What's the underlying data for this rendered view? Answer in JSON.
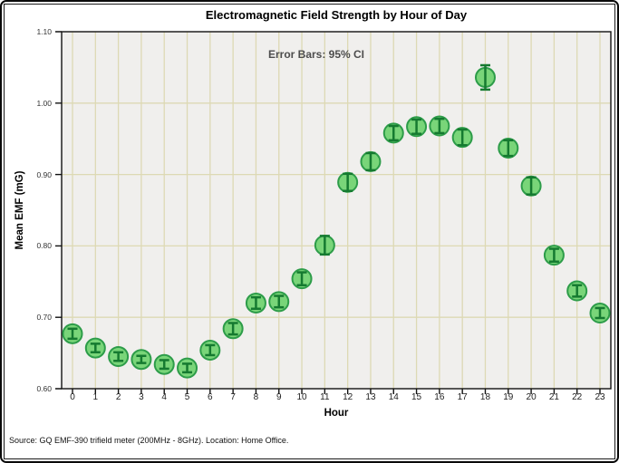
{
  "source_note": "Source: GQ EMF-390 trifield meter (200MHz - 8GHz). Location: Home Office.",
  "chart_data": {
    "type": "scatter",
    "title": "Electromagnetic Field Strength by Hour of Day",
    "xlabel": "Hour",
    "ylabel": "Mean EMF (mG)",
    "annotation": "Error Bars: 95% CI",
    "x": [
      0,
      1,
      2,
      3,
      4,
      5,
      6,
      7,
      8,
      9,
      10,
      11,
      12,
      13,
      14,
      15,
      16,
      17,
      18,
      19,
      20,
      21,
      22,
      23
    ],
    "y": [
      0.677,
      0.657,
      0.645,
      0.641,
      0.634,
      0.629,
      0.654,
      0.684,
      0.72,
      0.722,
      0.754,
      0.801,
      0.889,
      0.918,
      0.958,
      0.967,
      0.968,
      0.952,
      1.036,
      0.937,
      0.884,
      0.787,
      0.737,
      0.706
    ],
    "ci95": [
      0.007,
      0.006,
      0.006,
      0.005,
      0.006,
      0.006,
      0.007,
      0.008,
      0.008,
      0.008,
      0.009,
      0.013,
      0.012,
      0.012,
      0.01,
      0.01,
      0.01,
      0.011,
      0.017,
      0.011,
      0.012,
      0.009,
      0.008,
      0.007
    ],
    "ylim": [
      0.6,
      1.1
    ],
    "yticks": [
      0.6,
      0.7,
      0.8,
      0.9,
      1.0,
      1.1
    ],
    "grid": true,
    "legend": "none",
    "colors": {
      "marker_fill": "#79d579",
      "marker_edge": "#2d9c49",
      "error_bar": "#157a30",
      "plot_bg": "#f0efed",
      "grid": "#ddd9b4",
      "axis": "#111111",
      "tick_label": "#333333",
      "annotation_text": "#4d4d4d"
    }
  }
}
